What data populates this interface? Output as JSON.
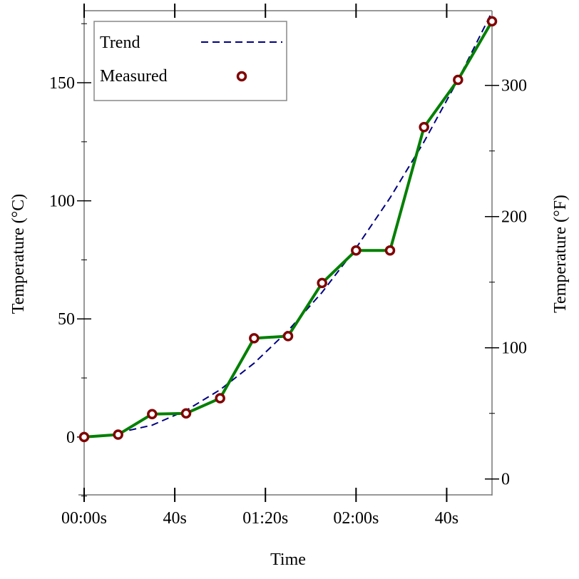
{
  "chart_data": {
    "type": "line",
    "title": "",
    "xlabel": "Time",
    "ylabel": "Temperature (°C)",
    "ylabel_right": "Temperature (°F)",
    "xlim": [
      0,
      180
    ],
    "ylim": [
      -24.5,
      180.5
    ],
    "x_ticks": [
      0,
      40,
      80,
      120,
      160
    ],
    "x_tick_labels": [
      "00:00s",
      "40s",
      "01:20s",
      "02:00s",
      "40s"
    ],
    "y_ticks": [
      0,
      50,
      100,
      150
    ],
    "y_tick_labels": [
      "0",
      "50",
      "100",
      "150"
    ],
    "y_minor_ticks": [
      -25,
      25,
      75,
      125,
      175
    ],
    "y2_ticks": [
      0,
      100,
      200,
      300
    ],
    "y2_tick_labels": [
      "0",
      "100",
      "200",
      "300"
    ],
    "y2_minor_ticks": [
      50,
      150,
      250
    ],
    "grid": false,
    "legend": {
      "placement": "top-left",
      "entries": [
        "Trend",
        "Measured"
      ]
    },
    "series": [
      {
        "name": "Measured",
        "color": "#008000",
        "marker_color": "#800000",
        "x": [
          0,
          15,
          30,
          45,
          60,
          75,
          90,
          105,
          120,
          135,
          150,
          165,
          180
        ],
        "values": [
          0,
          1,
          9.7,
          10,
          16.4,
          41.8,
          42.7,
          65.2,
          79,
          79,
          131.2,
          151.2,
          176
        ]
      },
      {
        "name": "Trend",
        "color": "#000080",
        "style": "dashed",
        "x": [
          15,
          30,
          45,
          60,
          75,
          90,
          105,
          120,
          135,
          150,
          165,
          180
        ],
        "values": [
          1.8,
          5,
          11.25,
          20,
          31.25,
          45,
          61.25,
          80,
          101.25,
          125,
          151.25,
          180
        ]
      }
    ]
  }
}
